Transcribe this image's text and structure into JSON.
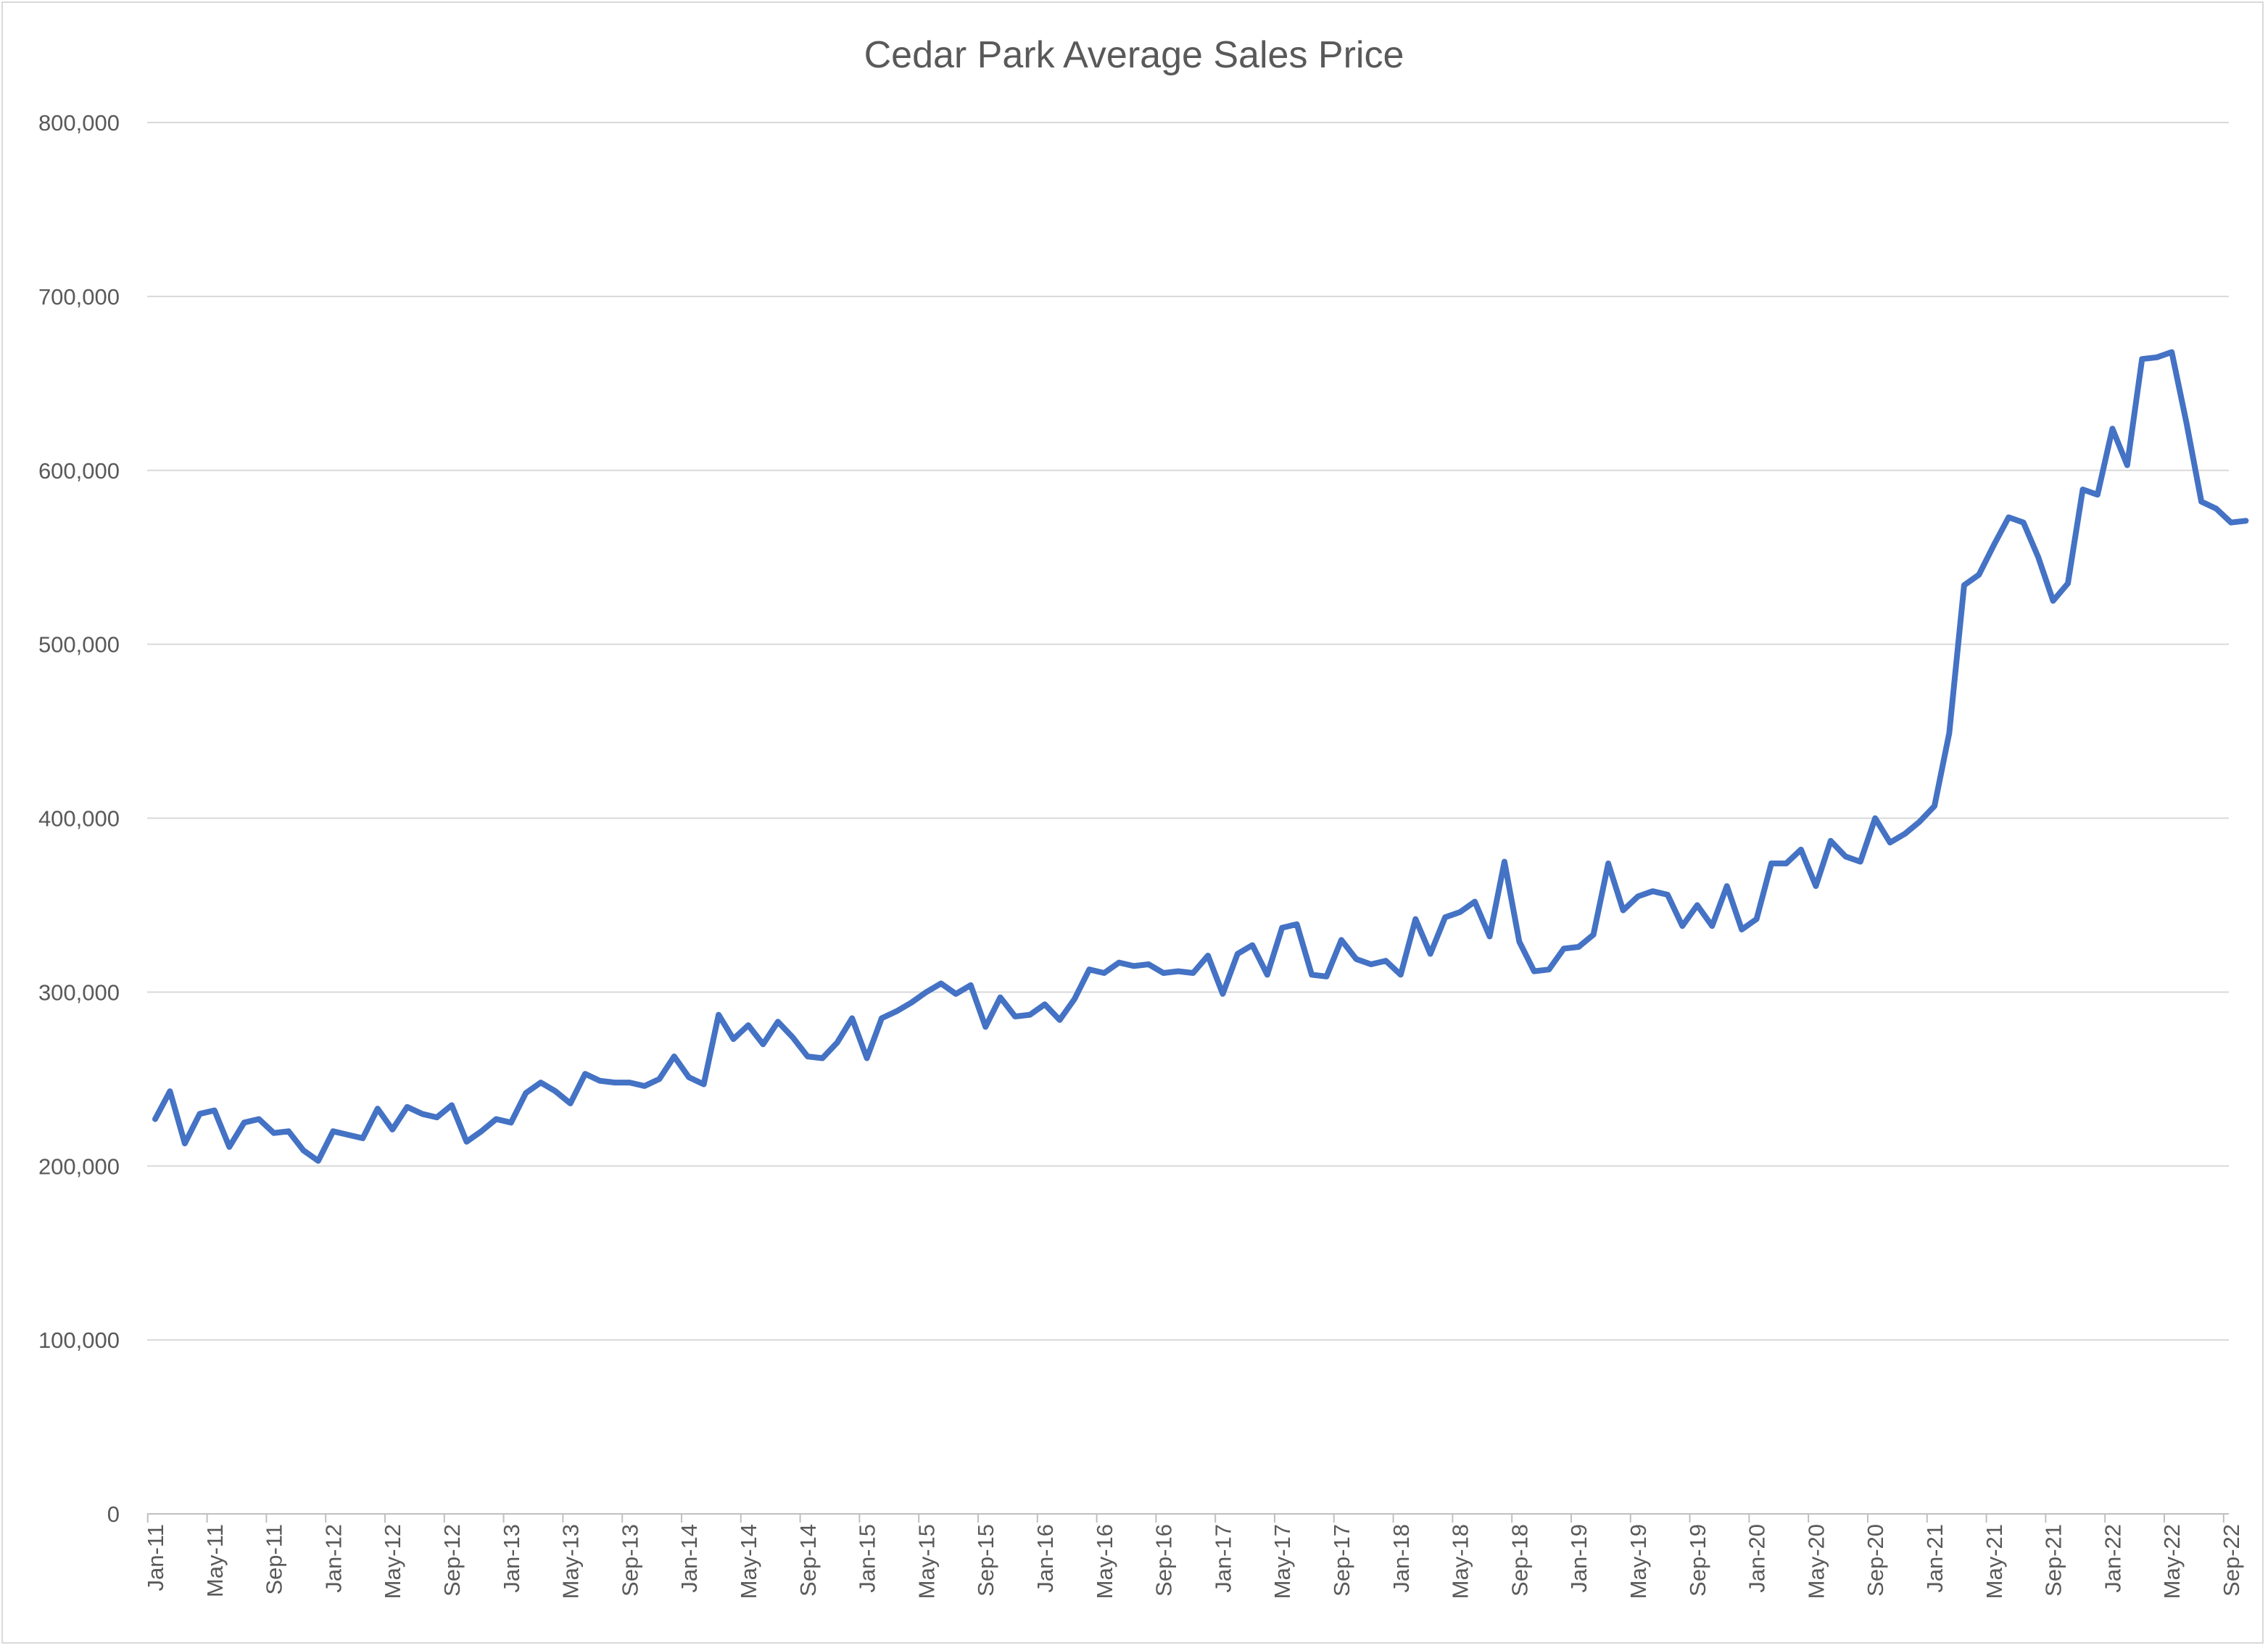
{
  "chart_data": {
    "type": "line",
    "title": "Cedar Park Average Sales Price",
    "xlabel": "",
    "ylabel": "",
    "ylim": [
      0,
      800000
    ],
    "yticks": [
      0,
      100000,
      200000,
      300000,
      400000,
      500000,
      600000,
      700000,
      800000
    ],
    "ytick_labels": [
      "0",
      "100,000",
      "200,000",
      "300,000",
      "400,000",
      "500,000",
      "600,000",
      "700,000",
      "800,000"
    ],
    "grid": true,
    "legend": "none",
    "series_color": "#4472c4",
    "xtick_labels": [
      "Jan-11",
      "May-11",
      "Sep-11",
      "Jan-12",
      "May-12",
      "Sep-12",
      "Jan-13",
      "May-13",
      "Sep-13",
      "Jan-14",
      "May-14",
      "Sep-14",
      "Jan-15",
      "May-15",
      "Sep-15",
      "Jan-16",
      "May-16",
      "Sep-16",
      "Jan-17",
      "May-17",
      "Sep-17",
      "Jan-18",
      "May-18",
      "Sep-18",
      "Jan-19",
      "May-19",
      "Sep-19",
      "Jan-20",
      "May-20",
      "Sep-20",
      "Jan-21",
      "May-21",
      "Sep-21",
      "Jan-22",
      "May-22",
      "Sep-22"
    ],
    "categories": [
      "Jan-11",
      "Feb-11",
      "Mar-11",
      "Apr-11",
      "May-11",
      "Jun-11",
      "Jul-11",
      "Aug-11",
      "Sep-11",
      "Oct-11",
      "Nov-11",
      "Dec-11",
      "Jan-12",
      "Feb-12",
      "Mar-12",
      "Apr-12",
      "May-12",
      "Jun-12",
      "Jul-12",
      "Aug-12",
      "Sep-12",
      "Oct-12",
      "Nov-12",
      "Dec-12",
      "Jan-13",
      "Feb-13",
      "Mar-13",
      "Apr-13",
      "May-13",
      "Jun-13",
      "Jul-13",
      "Aug-13",
      "Sep-13",
      "Oct-13",
      "Nov-13",
      "Dec-13",
      "Jan-14",
      "Feb-14",
      "Mar-14",
      "Apr-14",
      "May-14",
      "Jun-14",
      "Jul-14",
      "Aug-14",
      "Sep-14",
      "Oct-14",
      "Nov-14",
      "Dec-14",
      "Jan-15",
      "Feb-15",
      "Mar-15",
      "Apr-15",
      "May-15",
      "Jun-15",
      "Jul-15",
      "Aug-15",
      "Sep-15",
      "Oct-15",
      "Nov-15",
      "Dec-15",
      "Jan-16",
      "Feb-16",
      "Mar-16",
      "Apr-16",
      "May-16",
      "Jun-16",
      "Jul-16",
      "Aug-16",
      "Sep-16",
      "Oct-16",
      "Nov-16",
      "Dec-16",
      "Jan-17",
      "Feb-17",
      "Mar-17",
      "Apr-17",
      "May-17",
      "Jun-17",
      "Jul-17",
      "Aug-17",
      "Sep-17",
      "Oct-17",
      "Nov-17",
      "Dec-17",
      "Jan-18",
      "Feb-18",
      "Mar-18",
      "Apr-18",
      "May-18",
      "Jun-18",
      "Jul-18",
      "Aug-18",
      "Sep-18",
      "Oct-18",
      "Nov-18",
      "Dec-18",
      "Jan-19",
      "Feb-19",
      "Mar-19",
      "Apr-19",
      "May-19",
      "Jun-19",
      "Jul-19",
      "Aug-19",
      "Sep-19",
      "Oct-19",
      "Nov-19",
      "Dec-19",
      "Jan-20",
      "Feb-20",
      "Mar-20",
      "Apr-20",
      "May-20",
      "Jun-20",
      "Jul-20",
      "Aug-20",
      "Sep-20",
      "Oct-20",
      "Nov-20",
      "Dec-20",
      "Jan-21",
      "Feb-21",
      "Mar-21",
      "Apr-21",
      "May-21",
      "Jun-21",
      "Jul-21",
      "Aug-21",
      "Sep-21",
      "Oct-21",
      "Nov-21",
      "Dec-21",
      "Jan-22",
      "Feb-22",
      "Mar-22",
      "Apr-22",
      "May-22",
      "Jun-22",
      "Jul-22",
      "Aug-22",
      "Sep-22",
      "Oct-22"
    ],
    "values": [
      227000,
      243000,
      213000,
      230000,
      232000,
      211000,
      225000,
      227000,
      219000,
      220000,
      209000,
      203000,
      220000,
      218000,
      216000,
      233000,
      221000,
      234000,
      230000,
      228000,
      235000,
      214000,
      220000,
      227000,
      225000,
      242000,
      248000,
      243000,
      236000,
      253000,
      249000,
      248000,
      248000,
      246000,
      250000,
      263000,
      251000,
      247000,
      287000,
      273000,
      281000,
      270000,
      283000,
      274000,
      263000,
      262000,
      271000,
      285000,
      262000,
      285000,
      289000,
      294000,
      300000,
      305000,
      299000,
      304000,
      280000,
      297000,
      286000,
      287000,
      293000,
      284000,
      296000,
      313000,
      311000,
      317000,
      315000,
      316000,
      311000,
      312000,
      311000,
      321000,
      299000,
      322000,
      327000,
      310000,
      337000,
      339000,
      310000,
      309000,
      330000,
      319000,
      316000,
      318000,
      310000,
      342000,
      322000,
      343000,
      346000,
      352000,
      332000,
      375000,
      329000,
      312000,
      313000,
      325000,
      326000,
      333000,
      374000,
      347000,
      355000,
      358000,
      356000,
      338000,
      350000,
      338000,
      361000,
      336000,
      342000,
      374000,
      374000,
      382000,
      361000,
      387000,
      378000,
      375000,
      400000,
      386000,
      391000,
      398000,
      407000,
      449000,
      534000,
      540000,
      557000,
      573000,
      570000,
      550000,
      525000,
      535000,
      589000,
      586000,
      624000,
      603000,
      664000,
      665000,
      668000,
      627000,
      582000,
      578000,
      570000,
      571000
    ]
  }
}
